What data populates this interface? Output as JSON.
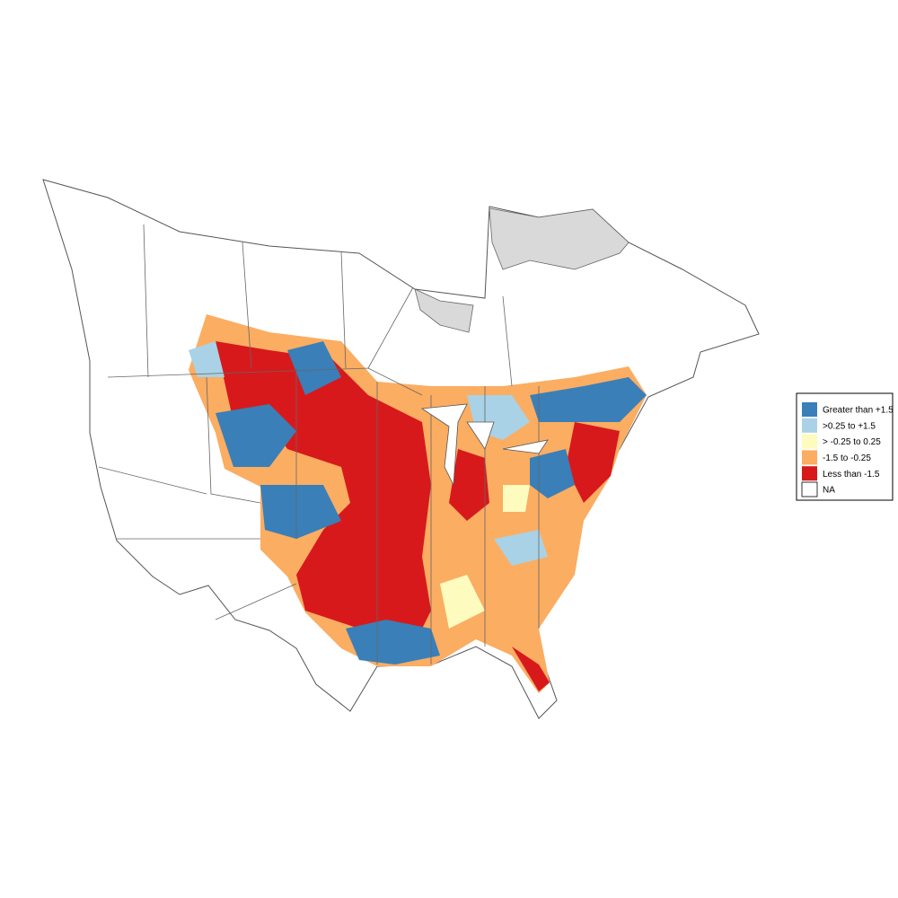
{
  "legend": {
    "items": [
      {
        "label": "Greater than +1.5",
        "color": "#3a7fb8"
      },
      {
        "label": ">0.25 to +1.5",
        "color": "#a9d2e6"
      },
      {
        "label": "> -0.25 to 0.25",
        "color": "#fdfbbd"
      },
      {
        "label": "-1.5 to -0.25",
        "color": "#fbad62"
      },
      {
        "label": "Less than -1.5",
        "color": "#d7191c"
      },
      {
        "label": "NA",
        "color": "#ffffff"
      }
    ]
  }
}
